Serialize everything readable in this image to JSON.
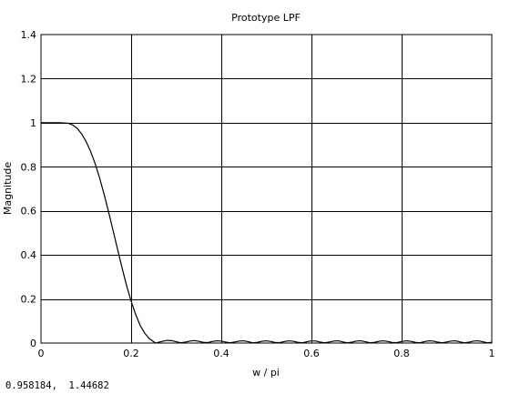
{
  "chart_data": {
    "type": "line",
    "title": "Prototype LPF",
    "xlabel": "w / pi",
    "ylabel": "Magnitude",
    "xlim": [
      0,
      1
    ],
    "ylim": [
      0,
      1.4
    ],
    "grid": true,
    "x_ticks": [
      "0",
      "0.2",
      "0.4",
      "0.6",
      "0.8",
      "1"
    ],
    "x_tick_values": [
      0,
      0.2,
      0.4,
      0.6,
      0.8,
      1
    ],
    "y_ticks": [
      "0",
      "0.2",
      "0.4",
      "0.6",
      "0.8",
      "1",
      "1.2",
      "1.4"
    ],
    "y_tick_values": [
      0,
      0.2,
      0.4,
      0.6,
      0.8,
      1,
      1.2,
      1.4
    ],
    "line_color": "#000000",
    "grid_color": "#000000",
    "series": [
      {
        "x": [
          0,
          0.02,
          0.04,
          0.06,
          0.07,
          0.08,
          0.09,
          0.1,
          0.11,
          0.12,
          0.13,
          0.14,
          0.15,
          0.16,
          0.17,
          0.18,
          0.19,
          0.2,
          0.21,
          0.22,
          0.23,
          0.24,
          0.25,
          0.255,
          0.26,
          0.27,
          0.28,
          0.29,
          0.3,
          0.31,
          0.32,
          0.33,
          0.34,
          0.35,
          0.36,
          0.37,
          0.38,
          0.39,
          0.4,
          0.41,
          0.42,
          0.43,
          0.44,
          0.45,
          0.46,
          0.47,
          0.48,
          0.49,
          0.5,
          0.51,
          0.52,
          0.53,
          0.54,
          0.55,
          0.56,
          0.57,
          0.58,
          0.59,
          0.6,
          0.61,
          0.62,
          0.63,
          0.64,
          0.65,
          0.66,
          0.67,
          0.68,
          0.69,
          0.7,
          0.71,
          0.72,
          0.73,
          0.74,
          0.75,
          0.76,
          0.77,
          0.78,
          0.79,
          0.8,
          0.81,
          0.82,
          0.83,
          0.84,
          0.85,
          0.86,
          0.87,
          0.88,
          0.89,
          0.9,
          0.91,
          0.92,
          0.93,
          0.94,
          0.95,
          0.96,
          0.97,
          0.98,
          0.99,
          1.0
        ],
        "y": [
          1.0,
          1.0,
          1.0,
          0.998,
          0.99,
          0.975,
          0.95,
          0.915,
          0.87,
          0.815,
          0.75,
          0.675,
          0.595,
          0.51,
          0.425,
          0.34,
          0.26,
          0.19,
          0.13,
          0.08,
          0.045,
          0.02,
          0.006,
          0.0,
          0.003,
          0.008,
          0.012,
          0.011,
          0.006,
          0.001,
          0.004,
          0.009,
          0.011,
          0.008,
          0.003,
          0.002,
          0.007,
          0.01,
          0.009,
          0.004,
          0.001,
          0.005,
          0.009,
          0.01,
          0.006,
          0.001,
          0.003,
          0.008,
          0.01,
          0.007,
          0.002,
          0.002,
          0.007,
          0.01,
          0.008,
          0.003,
          0.001,
          0.006,
          0.01,
          0.009,
          0.004,
          0.001,
          0.005,
          0.009,
          0.01,
          0.005,
          0.001,
          0.004,
          0.009,
          0.01,
          0.006,
          0.001,
          0.003,
          0.008,
          0.01,
          0.007,
          0.002,
          0.002,
          0.007,
          0.01,
          0.008,
          0.003,
          0.001,
          0.006,
          0.01,
          0.009,
          0.004,
          0.001,
          0.005,
          0.009,
          0.01,
          0.005,
          0.001,
          0.004,
          0.009,
          0.01,
          0.006,
          0.001,
          0.003
        ]
      }
    ]
  },
  "cursor_readout": "0.958184,  1.44682"
}
